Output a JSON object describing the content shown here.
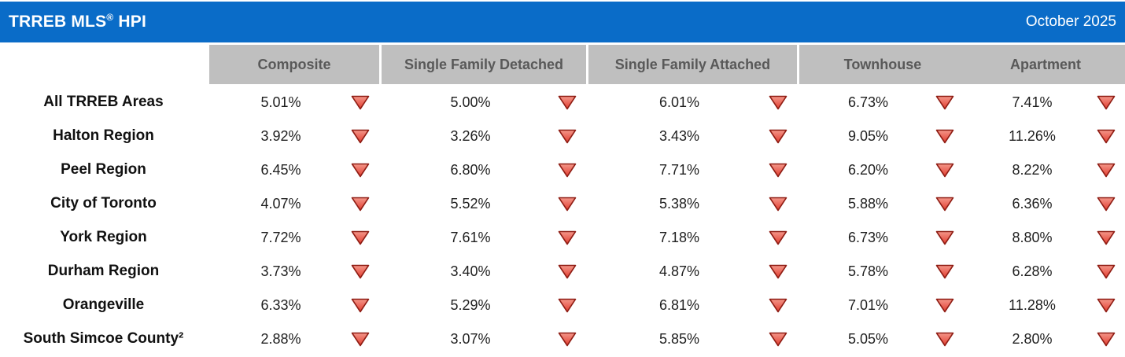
{
  "header": {
    "title_prefix": "TRREB MLS",
    "title_reg": "®",
    "title_suffix": " HPI",
    "date": "October 2025"
  },
  "columns": [
    "Composite",
    "Single Family Detached",
    "Single Family Attached",
    "Townhouse",
    "Apartment"
  ],
  "rows": [
    {
      "region": "All TRREB Areas",
      "highlight": true,
      "values": [
        "5.01%",
        "5.00%",
        "6.01%",
        "6.73%",
        "7.41%"
      ]
    },
    {
      "region": "Halton Region",
      "highlight": false,
      "values": [
        "3.92%",
        "3.26%",
        "3.43%",
        "9.05%",
        "11.26%"
      ]
    },
    {
      "region": "Peel Region",
      "highlight": false,
      "values": [
        "6.45%",
        "6.80%",
        "7.71%",
        "6.20%",
        "8.22%"
      ]
    },
    {
      "region": "City of Toronto",
      "highlight": false,
      "values": [
        "4.07%",
        "5.52%",
        "5.38%",
        "5.88%",
        "6.36%"
      ]
    },
    {
      "region": "York Region",
      "highlight": false,
      "values": [
        "7.72%",
        "7.61%",
        "7.18%",
        "6.73%",
        "8.80%"
      ]
    },
    {
      "region": "Durham Region",
      "highlight": false,
      "values": [
        "3.73%",
        "3.40%",
        "4.87%",
        "5.78%",
        "6.28%"
      ]
    },
    {
      "region": "Orangeville",
      "highlight": false,
      "values": [
        "6.33%",
        "5.29%",
        "6.81%",
        "7.01%",
        "11.28%"
      ]
    },
    {
      "region": "South Simcoe County²",
      "highlight": false,
      "values": [
        "2.88%",
        "3.07%",
        "5.85%",
        "5.05%",
        "2.80%"
      ]
    }
  ],
  "icons": {
    "trend_down": "red-down-triangle"
  },
  "colors": {
    "title_bar_blue": "#0a6cc8",
    "highlight_orange": "#f0a80a",
    "header_gray": "#bfbfbf",
    "header_text_gray": "#595959",
    "alt_row_gray": "#eeeeee",
    "triangle_red": "#e23b2e",
    "triangle_red_light": "#f4978a",
    "triangle_outline": "#8f1d14"
  },
  "chart_data": {
    "type": "table",
    "title": "TRREB MLS® HPI",
    "period": "October 2025",
    "columns": [
      "Composite",
      "Single Family Detached",
      "Single Family Attached",
      "Townhouse",
      "Apartment"
    ],
    "row_labels": [
      "All TRREB Areas",
      "Halton Region",
      "Peel Region",
      "City of Toronto",
      "York Region",
      "Durham Region",
      "Orangeville",
      "South Simcoe County²"
    ],
    "values_pct": [
      [
        5.01,
        5.0,
        6.01,
        6.73,
        7.41
      ],
      [
        3.92,
        3.26,
        3.43,
        9.05,
        11.26
      ],
      [
        6.45,
        6.8,
        7.71,
        6.2,
        8.22
      ],
      [
        4.07,
        5.52,
        5.38,
        5.88,
        6.36
      ],
      [
        7.72,
        7.61,
        7.18,
        6.73,
        8.8
      ],
      [
        3.73,
        3.4,
        4.87,
        5.78,
        6.28
      ],
      [
        6.33,
        5.29,
        6.81,
        7.01,
        11.28
      ],
      [
        2.88,
        3.07,
        5.85,
        5.05,
        2.8
      ]
    ],
    "trend_per_cell": "down",
    "notes": "Every cell shows a red downward triangle indicating a year-over-year decline"
  }
}
